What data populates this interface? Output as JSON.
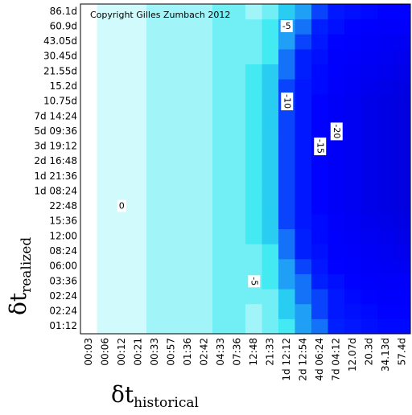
{
  "chart_data": {
    "type": "heatmap",
    "annotation": "Copyright Gilles Zumbach 2012",
    "x_label": "δt",
    "x_label_sub": "historical",
    "y_label": "δt",
    "y_label_sub": "realized",
    "x": [
      "00:03",
      "00:06",
      "00:12",
      "00:21",
      "00:33",
      "00:57",
      "01:36",
      "02:42",
      "04:33",
      "07:36",
      "12:48",
      "21:33",
      "1d 12:12",
      "2d 12:54",
      "4d 06:24",
      "7d 04:12",
      "12.07d",
      "20.3d",
      "34.13d",
      "57.4d"
    ],
    "y": [
      "01:12",
      "02:24",
      "02:24",
      "03:36",
      "06:00",
      "08:24",
      "12:00",
      "15:36",
      "22:48",
      "1d 08:24",
      "1d 21:36",
      "2d 16:48",
      "3d 19:12",
      "5d 09:36",
      "7d 14:24",
      "10.75d",
      "15.2d",
      "21.55d",
      "30.45d",
      "43.05d",
      "60.9d",
      "86.1d"
    ],
    "values": [
      [
        0,
        -1,
        -1,
        -1,
        -2,
        -2,
        -2,
        -2,
        -3,
        -3,
        -2,
        -3,
        -4,
        -6,
        -7,
        -9,
        -10,
        -11,
        -12,
        -12
      ],
      [
        0,
        -1,
        -1,
        -1,
        -2,
        -2,
        -2,
        -2,
        -3,
        -3,
        -2,
        -3,
        -5,
        -6,
        -8,
        -10,
        -11,
        -12,
        -13,
        -13
      ],
      [
        0,
        -1,
        -1,
        -1,
        -2,
        -2,
        -2,
        -2,
        -3,
        -3,
        -3,
        -3,
        -5,
        -7,
        -8,
        -10,
        -12,
        -13,
        -14,
        -14
      ],
      [
        0,
        -1,
        -1,
        -1,
        -2,
        -2,
        -2,
        -2,
        -3,
        -3,
        -3,
        -4,
        -6,
        -7,
        -9,
        -11,
        -13,
        -14,
        -15,
        -15
      ],
      [
        0,
        -1,
        -1,
        -1,
        -2,
        -2,
        -2,
        -2,
        -3,
        -3,
        -3,
        -4,
        -6,
        -8,
        -10,
        -13,
        -14,
        -16,
        -17,
        -18
      ],
      [
        0,
        -1,
        -1,
        -1,
        -2,
        -2,
        -2,
        -2,
        -3,
        -3,
        -3,
        -4,
        -7,
        -9,
        -11,
        -14,
        -15,
        -17,
        -18,
        -19
      ],
      [
        0,
        -1,
        -1,
        -1,
        -2,
        -2,
        -2,
        -2,
        -3,
        -3,
        -4,
        -5,
        -7,
        -9,
        -12,
        -14,
        -16,
        -18,
        -19,
        -20
      ],
      [
        0,
        -1,
        -1,
        -1,
        -2,
        -2,
        -2,
        -2,
        -3,
        -3,
        -4,
        -5,
        -8,
        -10,
        -12,
        -15,
        -17,
        -19,
        -20,
        -21
      ],
      [
        0,
        -1,
        -1,
        -1,
        -2,
        -2,
        -2,
        -2,
        -3,
        -3,
        -4,
        -5,
        -8,
        -10,
        -13,
        -16,
        -18,
        -20,
        -21,
        -22
      ],
      [
        0,
        -1,
        -1,
        -1,
        -2,
        -2,
        -2,
        -2,
        -3,
        -3,
        -4,
        -5,
        -8,
        -10,
        -13,
        -16,
        -18,
        -20,
        -21,
        -22
      ],
      [
        0,
        -1,
        -1,
        -1,
        -2,
        -2,
        -2,
        -2,
        -3,
        -3,
        -4,
        -5,
        -8,
        -10,
        -13,
        -16,
        -18,
        -20,
        -21,
        -22
      ],
      [
        0,
        -1,
        -1,
        -1,
        -2,
        -2,
        -2,
        -2,
        -3,
        -3,
        -4,
        -5,
        -8,
        -10,
        -13,
        -16,
        -18,
        -20,
        -21,
        -22
      ],
      [
        0,
        -1,
        -1,
        -1,
        -2,
        -2,
        -2,
        -2,
        -3,
        -3,
        -4,
        -5,
        -8,
        -10,
        -13,
        -16,
        -18,
        -20,
        -21,
        -22
      ],
      [
        0,
        -1,
        -1,
        -1,
        -2,
        -2,
        -2,
        -2,
        -3,
        -3,
        -4,
        -5,
        -8,
        -10,
        -13,
        -16,
        -18,
        -20,
        -21,
        -22
      ],
      [
        0,
        -1,
        -1,
        -1,
        -2,
        -2,
        -2,
        -2,
        -3,
        -3,
        -4,
        -5,
        -8,
        -10,
        -13,
        -16,
        -18,
        -20,
        -21,
        -22
      ],
      [
        0,
        -1,
        -1,
        -1,
        -2,
        -2,
        -2,
        -2,
        -3,
        -3,
        -4,
        -5,
        -8,
        -10,
        -13,
        -16,
        -18,
        -20,
        -21,
        -22
      ],
      [
        0,
        -1,
        -1,
        -1,
        -2,
        -2,
        -2,
        -2,
        -3,
        -3,
        -4,
        -5,
        -8,
        -10,
        -12,
        -15,
        -17,
        -19,
        -20,
        -21
      ],
      [
        0,
        -1,
        -1,
        -1,
        -2,
        -2,
        -2,
        -2,
        -3,
        -3,
        -4,
        -5,
        -7,
        -9,
        -12,
        -14,
        -16,
        -18,
        -19,
        -20
      ],
      [
        0,
        -1,
        -1,
        -1,
        -2,
        -2,
        -2,
        -2,
        -3,
        -3,
        -3,
        -4,
        -7,
        -9,
        -11,
        -14,
        -15,
        -17,
        -18,
        -19
      ],
      [
        0,
        -1,
        -1,
        -1,
        -2,
        -2,
        -2,
        -2,
        -3,
        -3,
        -3,
        -4,
        -6,
        -8,
        -10,
        -13,
        -14,
        -16,
        -17,
        -18
      ],
      [
        0,
        -1,
        -1,
        -1,
        -2,
        -2,
        -2,
        -2,
        -3,
        -3,
        -3,
        -4,
        -6,
        -7,
        -9,
        -11,
        -13,
        -14,
        -15,
        -15
      ],
      [
        0,
        -1,
        -1,
        -1,
        -2,
        -2,
        -2,
        -2,
        -3,
        -3,
        -2,
        -3,
        -5,
        -6,
        -8,
        -10,
        -11,
        -12,
        -13,
        -13
      ]
    ],
    "colorscale": [
      "#ffffff",
      "#30e8f0",
      "#0020ff",
      "#0000ff",
      "#0000f4",
      "#0000e0"
    ],
    "contour_labels": [
      {
        "value": -5,
        "x": "1d 12:12",
        "y": "60.9d",
        "vertical": false
      },
      {
        "value": -10,
        "x": "1d 12:12",
        "y": "10.75d",
        "vertical": true
      },
      {
        "value": -15,
        "x": "4d 06:24",
        "y": "3d 19:12",
        "vertical": true
      },
      {
        "value": -20,
        "x": "7d 04:12",
        "y": "5d 09:36",
        "vertical": true
      },
      {
        "value": -5,
        "x": "12:48",
        "y": "03:36",
        "vertical": true
      },
      {
        "value": 0,
        "x": "00:12",
        "y": "22:48",
        "vertical": false
      }
    ]
  }
}
